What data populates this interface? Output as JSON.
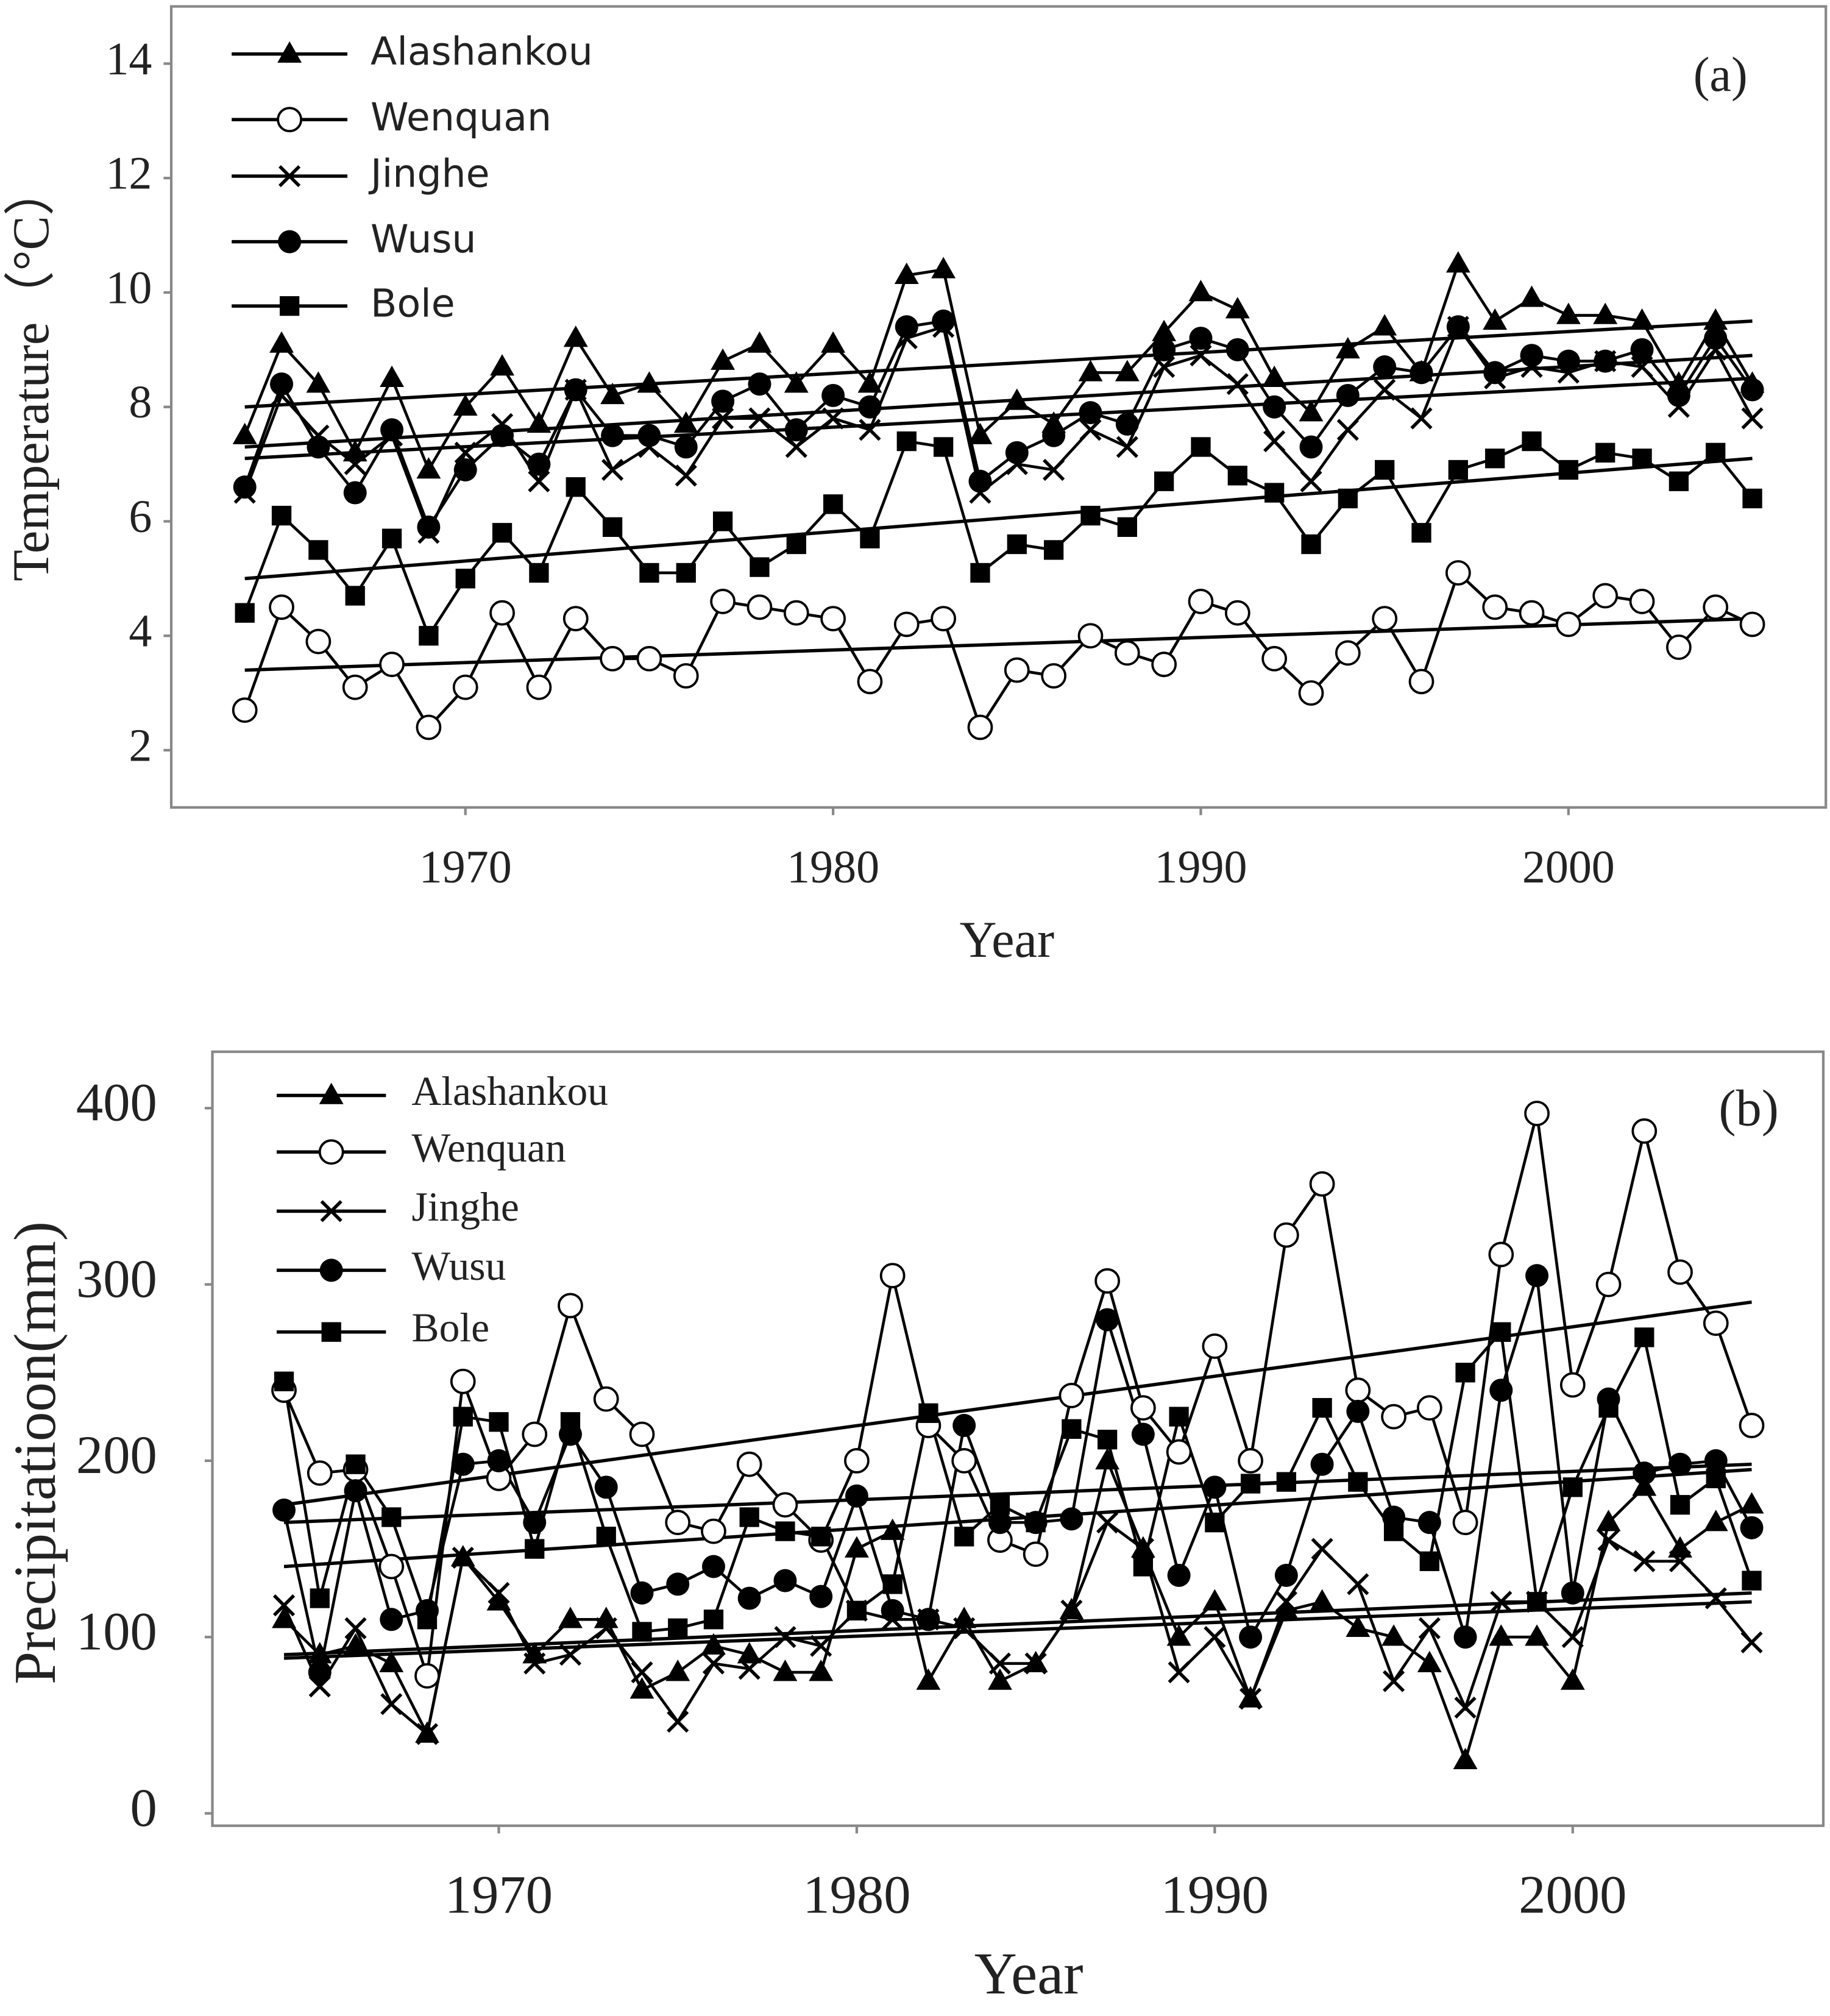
{
  "chart_data": [
    {
      "type": "line",
      "title": "(a)",
      "xlabel": "Year",
      "ylabel": "Temperature（°C）",
      "legend": "upper left",
      "x": [
        1964,
        1965,
        1966,
        1967,
        1968,
        1969,
        1970,
        1971,
        1972,
        1973,
        1974,
        1975,
        1976,
        1977,
        1978,
        1979,
        1980,
        1981,
        1982,
        1983,
        1984,
        1985,
        1986,
        1987,
        1988,
        1989,
        1990,
        1991,
        1992,
        1993,
        1994,
        1995,
        1996,
        1997,
        1998,
        1999,
        2000,
        2001,
        2002,
        2003,
        2004,
        2005
      ],
      "xlim": [
        1962,
        2007
      ],
      "xticks": [
        1970,
        1980,
        1990,
        2000
      ],
      "ylim": [
        1,
        15
      ],
      "yticks": [
        2,
        4,
        6,
        8,
        10,
        12,
        14
      ],
      "series": [
        {
          "name": "Alashankou",
          "color": "#000000",
          "marker": "triangle",
          "trend": [
            8.0,
            9.5
          ],
          "values": [
            7.5,
            9.1,
            8.4,
            7.2,
            8.5,
            6.9,
            8.0,
            8.7,
            7.7,
            9.2,
            8.2,
            8.4,
            7.7,
            8.8,
            9.1,
            8.4,
            9.1,
            8.4,
            10.3,
            10.4,
            7.5,
            8.1,
            7.7,
            8.6,
            8.6,
            9.3,
            10.0,
            9.7,
            8.5,
            7.9,
            9.0,
            9.4,
            8.6,
            10.5,
            9.5,
            9.9,
            9.6,
            9.6,
            9.5,
            8.4,
            9.5,
            8.4
          ]
        },
        {
          "name": "Wenquan",
          "color": "#000000",
          "marker": "open-circle",
          "trend": [
            3.4,
            4.3
          ],
          "values": [
            2.7,
            4.5,
            3.9,
            3.1,
            3.5,
            2.4,
            3.1,
            4.4,
            3.1,
            4.3,
            3.6,
            3.6,
            3.3,
            4.6,
            4.5,
            4.4,
            4.3,
            3.2,
            4.2,
            4.3,
            2.4,
            3.4,
            3.3,
            4.0,
            3.7,
            3.5,
            4.6,
            4.4,
            3.6,
            3.0,
            3.7,
            4.3,
            3.2,
            5.1,
            4.5,
            4.4,
            4.2,
            4.7,
            4.6,
            3.8,
            4.5,
            4.2
          ]
        },
        {
          "name": "Jinghe",
          "color": "#000000",
          "marker": "cross",
          "trend": [
            7.1,
            8.5
          ],
          "values": [
            6.5,
            8.2,
            7.5,
            7.0,
            7.5,
            5.8,
            7.2,
            7.7,
            6.7,
            8.3,
            6.9,
            7.3,
            6.8,
            7.8,
            7.8,
            7.3,
            7.8,
            7.6,
            9.2,
            9.4,
            6.5,
            7.0,
            6.9,
            7.6,
            7.3,
            8.7,
            8.9,
            8.4,
            7.4,
            6.7,
            7.6,
            8.3,
            7.8,
            9.4,
            8.5,
            8.7,
            8.6,
            8.8,
            8.7,
            8.0,
            9.0,
            7.8
          ]
        },
        {
          "name": "Wusu",
          "color": "#000000",
          "marker": "circle",
          "trend": [
            7.3,
            8.9
          ],
          "values": [
            6.6,
            8.4,
            7.3,
            6.5,
            7.6,
            5.9,
            6.9,
            7.5,
            7.0,
            8.3,
            7.5,
            7.5,
            7.3,
            8.1,
            8.4,
            7.6,
            8.2,
            8.0,
            9.4,
            9.5,
            6.7,
            7.2,
            7.5,
            7.9,
            7.7,
            9.0,
            9.2,
            9.0,
            8.0,
            7.3,
            8.2,
            8.7,
            8.6,
            9.4,
            8.6,
            8.9,
            8.8,
            8.8,
            9.0,
            8.2,
            9.2,
            8.3
          ]
        },
        {
          "name": "Bole",
          "color": "#000000",
          "marker": "square",
          "trend": [
            5.0,
            7.1
          ],
          "values": [
            4.4,
            6.1,
            5.5,
            4.7,
            5.7,
            4.0,
            5.0,
            5.8,
            5.1,
            6.6,
            5.9,
            5.1,
            5.1,
            6.0,
            5.2,
            5.6,
            6.3,
            5.7,
            7.4,
            7.3,
            5.1,
            5.6,
            5.5,
            6.1,
            5.9,
            6.7,
            7.3,
            6.8,
            6.5,
            5.6,
            6.4,
            6.9,
            5.8,
            6.9,
            7.1,
            7.4,
            6.9,
            7.2,
            7.1,
            6.7,
            7.2,
            6.4
          ]
        }
      ]
    },
    {
      "type": "line",
      "title": "(b)",
      "xlabel": "Year",
      "ylabel": "Precipitatioon(mm)",
      "legend": "upper left",
      "x": [
        1964,
        1965,
        1966,
        1967,
        1968,
        1969,
        1970,
        1971,
        1972,
        1973,
        1974,
        1975,
        1976,
        1977,
        1978,
        1979,
        1980,
        1981,
        1982,
        1983,
        1984,
        1985,
        1986,
        1987,
        1988,
        1989,
        1990,
        1991,
        1992,
        1993,
        1994,
        1995,
        1996,
        1997,
        1998,
        1999,
        2000,
        2001,
        2002,
        2003,
        2004,
        2005
      ],
      "xlim": [
        1962,
        2007
      ],
      "xticks": [
        1970,
        1980,
        1990,
        2000
      ],
      "ylim": [
        -7,
        432
      ],
      "yticks": [
        0,
        100,
        200,
        300,
        400
      ],
      "series": [
        {
          "name": "Alashankou",
          "color": "#000000",
          "marker": "triangle",
          "trend": [
            88,
            120
          ],
          "values": [
            110,
            90,
            95,
            85,
            45,
            145,
            120,
            90,
            110,
            110,
            70,
            80,
            95,
            90,
            80,
            80,
            150,
            160,
            75,
            110,
            75,
            85,
            115,
            200,
            150,
            100,
            120,
            65,
            115,
            120,
            105,
            100,
            85,
            30,
            100,
            100,
            75,
            165,
            185,
            150,
            165,
            175
          ]
        },
        {
          "name": "Wenquan",
          "color": "#000000",
          "marker": "open-circle",
          "trend": [
            175,
            290
          ],
          "values": [
            240,
            193,
            195,
            140,
            78,
            245,
            190,
            215,
            288,
            235,
            215,
            165,
            160,
            198,
            175,
            155,
            200,
            305,
            220,
            200,
            155,
            147,
            237,
            302,
            230,
            205,
            265,
            200,
            328,
            357,
            240,
            225,
            230,
            165,
            317,
            397,
            243,
            300,
            387,
            307,
            278,
            220
          ]
        },
        {
          "name": "Jinghe",
          "color": "#000000",
          "marker": "cross",
          "trend": [
            90,
            125
          ],
          "values": [
            118,
            72,
            105,
            62,
            45,
            145,
            125,
            85,
            90,
            105,
            80,
            52,
            85,
            82,
            100,
            95,
            115,
            110,
            110,
            105,
            85,
            85,
            115,
            165,
            150,
            80,
            100,
            65,
            120,
            150,
            130,
            75,
            105,
            60,
            120,
            120,
            100,
            155,
            143,
            143,
            122,
            97
          ]
        },
        {
          "name": "Wusu",
          "color": "#000000",
          "marker": "circle",
          "trend": [
            165,
            198
          ],
          "values": [
            172,
            80,
            183,
            110,
            115,
            198,
            200,
            165,
            215,
            185,
            125,
            130,
            140,
            122,
            132,
            123,
            180,
            115,
            110,
            220,
            165,
            165,
            167,
            280,
            215,
            135,
            185,
            100,
            135,
            198,
            228,
            168,
            165,
            100,
            240,
            305,
            125,
            235,
            193,
            198,
            200,
            162
          ]
        },
        {
          "name": "Bole",
          "color": "#000000",
          "marker": "square",
          "trend": [
            140,
            195
          ],
          "values": [
            245,
            122,
            198,
            168,
            110,
            225,
            222,
            150,
            222,
            157,
            103,
            105,
            110,
            168,
            160,
            157,
            115,
            130,
            227,
            157,
            175,
            165,
            218,
            212,
            140,
            225,
            165,
            187,
            188,
            230,
            188,
            160,
            143,
            250,
            273,
            120,
            185,
            230,
            270,
            175,
            190,
            132
          ]
        }
      ]
    }
  ]
}
